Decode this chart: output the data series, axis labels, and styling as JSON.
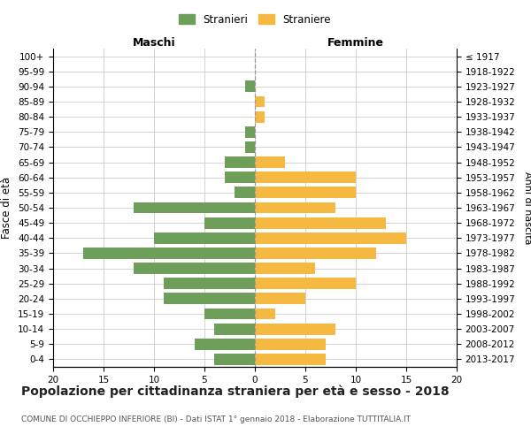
{
  "age_groups": [
    "100+",
    "95-99",
    "90-94",
    "85-89",
    "80-84",
    "75-79",
    "70-74",
    "65-69",
    "60-64",
    "55-59",
    "50-54",
    "45-49",
    "40-44",
    "35-39",
    "30-34",
    "25-29",
    "20-24",
    "15-19",
    "10-14",
    "5-9",
    "0-4"
  ],
  "birth_years": [
    "≤ 1917",
    "1918-1922",
    "1923-1927",
    "1928-1932",
    "1933-1937",
    "1938-1942",
    "1943-1947",
    "1948-1952",
    "1953-1957",
    "1958-1962",
    "1963-1967",
    "1968-1972",
    "1973-1977",
    "1978-1982",
    "1983-1987",
    "1988-1992",
    "1993-1997",
    "1998-2002",
    "2003-2007",
    "2008-2012",
    "2013-2017"
  ],
  "maschi": [
    0,
    0,
    1,
    0,
    0,
    1,
    1,
    3,
    3,
    2,
    12,
    5,
    10,
    17,
    12,
    9,
    9,
    5,
    4,
    6,
    4
  ],
  "femmine": [
    0,
    0,
    0,
    1,
    1,
    0,
    0,
    3,
    10,
    10,
    8,
    13,
    15,
    12,
    6,
    10,
    5,
    2,
    8,
    7,
    7
  ],
  "color_maschi": "#6d9e5a",
  "color_femmine": "#f5b942",
  "title": "Popolazione per cittadinanza straniera per età e sesso - 2018",
  "subtitle": "COMUNE DI OCCHIEPPO INFERIORE (BI) - Dati ISTAT 1° gennaio 2018 - Elaborazione TUTTITALIA.IT",
  "ylabel_left": "Fasce di età",
  "ylabel_right": "Anni di nascita",
  "label_maschi": "Maschi",
  "label_femmine": "Femmine",
  "legend_maschi": "Stranieri",
  "legend_femmine": "Straniere",
  "xlim": 20,
  "background_color": "#ffffff",
  "grid_color": "#cccccc",
  "title_fontsize": 10,
  "subtitle_fontsize": 6.5,
  "bar_height": 0.75
}
